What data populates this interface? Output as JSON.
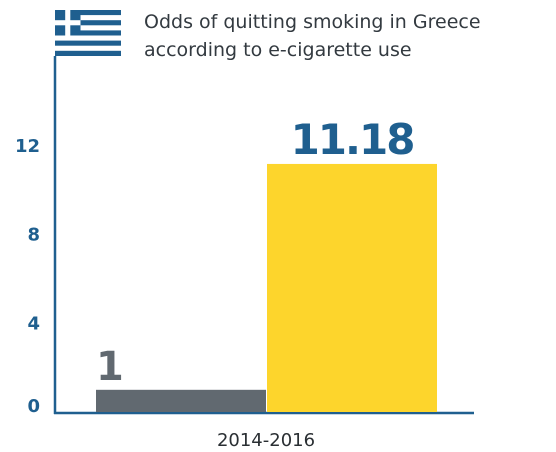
{
  "chart_data": {
    "type": "bar",
    "title_lines": [
      "Odds of quitting smoking in Greece",
      "according to e-cigarette use"
    ],
    "categories": [
      "2014-2016"
    ],
    "series": [
      {
        "values": [
          1
        ],
        "color": "#616970",
        "label_color": "#616970"
      },
      {
        "values": [
          11.18
        ],
        "color": "#fdd52c",
        "label_color": "#1f5f8f"
      }
    ],
    "data_labels": [
      "1",
      "11.18"
    ],
    "yticks": [
      0,
      4,
      8,
      12
    ],
    "ylim": [
      0,
      16
    ],
    "grid": false,
    "legend": "none",
    "flag_icon": "greece-flag-icon",
    "axis_color": "#1f5f8f"
  }
}
